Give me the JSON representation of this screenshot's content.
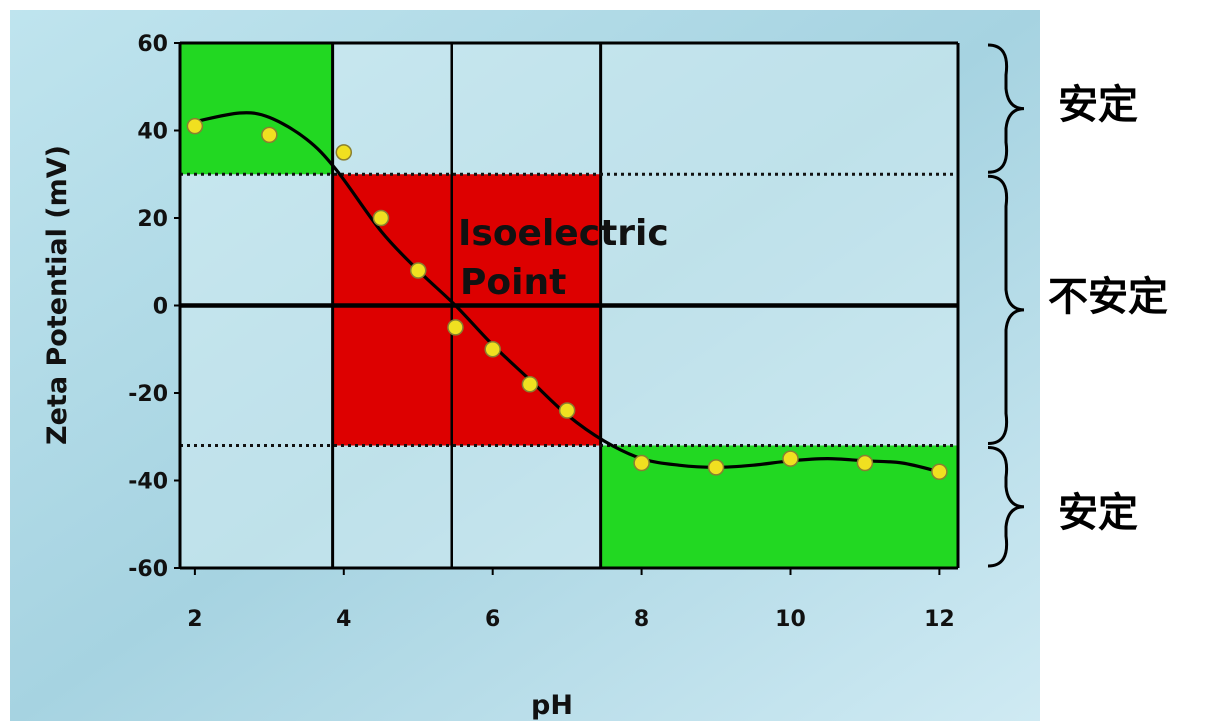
{
  "chart_data": {
    "type": "scatter",
    "xlabel": "pH",
    "ylabel": "Zeta Potential (mV)",
    "xlim": [
      1.8,
      12.25
    ],
    "ylim": [
      -60,
      60
    ],
    "x_ticks": [
      2,
      4,
      6,
      8,
      10,
      12
    ],
    "y_ticks": [
      60,
      40,
      20,
      0,
      -20,
      -40,
      -60
    ],
    "series": [
      {
        "x": [
          2,
          3,
          4,
          4.5,
          5,
          5.5,
          6,
          6.5,
          7,
          8,
          9,
          10,
          11,
          12
        ],
        "y": [
          41,
          39,
          35,
          20,
          8,
          -5,
          -10,
          -18,
          -24,
          -36,
          -37,
          -35,
          -36,
          -38
        ]
      }
    ],
    "fit_curve": {
      "x": [
        2,
        2.6,
        3,
        3.5,
        3.9,
        4.5,
        5,
        5.5,
        6,
        6.5,
        7,
        7.5,
        8,
        8.5,
        9,
        9.5,
        10,
        10.5,
        11,
        11.5,
        12
      ],
      "y": [
        42,
        44,
        43,
        38,
        31,
        17,
        8,
        0,
        -9,
        -17,
        -25,
        -31,
        -35,
        -36.5,
        -37,
        -36.5,
        -35.5,
        -35,
        -35.5,
        -36,
        -38
      ]
    },
    "zones": [
      {
        "label": "",
        "x": [
          1.8,
          3.85
        ],
        "y": [
          30,
          60
        ],
        "color": "#22d822"
      },
      {
        "label": "",
        "x": [
          3.85,
          7.45
        ],
        "y": [
          -32,
          30
        ],
        "color": "#dd0000"
      },
      {
        "label": "",
        "x": [
          7.45,
          12.25
        ],
        "y": [
          -60,
          -32
        ],
        "color": "#22d822"
      }
    ],
    "stability_thresholds": [
      30,
      -32
    ],
    "isoelectric_point": {
      "x": 5.45,
      "y": 0,
      "label_line1": "Isoelectric",
      "label_line2": "Point"
    },
    "bands": [
      {
        "label": "安定",
        "y": [
          30,
          60
        ]
      },
      {
        "label": "不安定",
        "y": [
          -32,
          30
        ]
      },
      {
        "label": "安定",
        "y": [
          -60,
          -32
        ]
      }
    ],
    "colors": {
      "marker_fill": "#f0e020",
      "marker_stroke": "#8a8030",
      "curve": "#000000",
      "background": "#a9d5e2"
    }
  }
}
